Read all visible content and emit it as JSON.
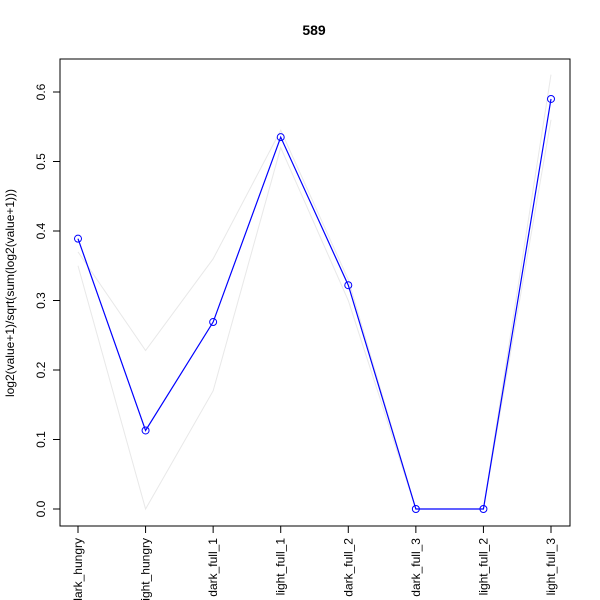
{
  "chart_data": {
    "type": "line",
    "title": "589",
    "xlabel": "",
    "ylabel": "log2(value+1)/sqrt(sum(log2(value+1)))",
    "categories": [
      "dark_hungry",
      "light_hungry",
      "dark_full_1",
      "light_full_1",
      "dark_full_2",
      "dark_full_3",
      "light_full_2",
      "light_full_3"
    ],
    "ylim": [
      0.0,
      0.6
    ],
    "yticks": [
      0.0,
      0.1,
      0.2,
      0.3,
      0.4,
      0.5,
      0.6
    ],
    "ytick_labels": [
      "0.0",
      "0.1",
      "0.2",
      "0.3",
      "0.4",
      "0.5",
      "0.6"
    ],
    "grid": false,
    "legend": "none",
    "series": [
      {
        "values": [
          0.389,
          0.113,
          0.269,
          0.535,
          0.322,
          0.0,
          0.0,
          0.59
        ],
        "color": "#0000ff",
        "markers": "open-circle"
      },
      {
        "values": [
          0.37,
          0.228,
          0.36,
          0.545,
          0.33,
          0.0,
          0.0,
          0.625
        ],
        "color": "#e8e8e8",
        "markers": "none"
      },
      {
        "values": [
          0.35,
          0.0,
          0.17,
          0.52,
          0.3,
          0.0,
          0.0,
          0.56
        ],
        "color": "#e8e8e8",
        "markers": "none"
      }
    ]
  }
}
